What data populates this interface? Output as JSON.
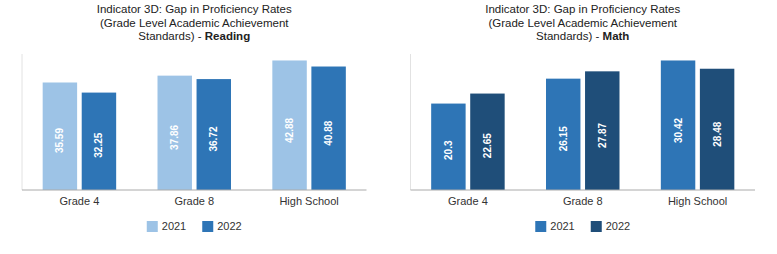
{
  "chart_data": [
    {
      "type": "bar",
      "title": [
        "Indicator 3D: Gap in Proficiency Rates",
        "(Grade Level Academic Achievement",
        "Standards) - Reading"
      ],
      "categories": [
        "Grade 4",
        "Grade 8",
        "High School"
      ],
      "series": [
        {
          "name": "2021",
          "color": "#9DC3E6",
          "values": [
            35.59,
            37.86,
            42.88
          ]
        },
        {
          "name": "2022",
          "color": "#2E75B6",
          "values": [
            32.25,
            36.72,
            40.88
          ]
        }
      ],
      "ylim": [
        0,
        45.024
      ],
      "data_labels": true,
      "tick_labels": "x",
      "grid": false,
      "legend": "bottom"
    },
    {
      "type": "bar",
      "title": [
        "Indicator 3D: Gap in Proficiency Rates",
        "(Grade Level Academic Achievement",
        "Standards) - Math"
      ],
      "categories": [
        "Grade 4",
        "Grade 8",
        "High School"
      ],
      "series": [
        {
          "name": "2021",
          "color": "#2E75B6",
          "values": [
            20.3,
            26.15,
            30.42
          ]
        },
        {
          "name": "2022",
          "color": "#1F4E79",
          "values": [
            22.65,
            27.87,
            28.48
          ]
        }
      ],
      "ylim": [
        0,
        31.941
      ],
      "data_labels": true,
      "tick_labels": "x",
      "grid": false,
      "legend": "bottom"
    }
  ]
}
